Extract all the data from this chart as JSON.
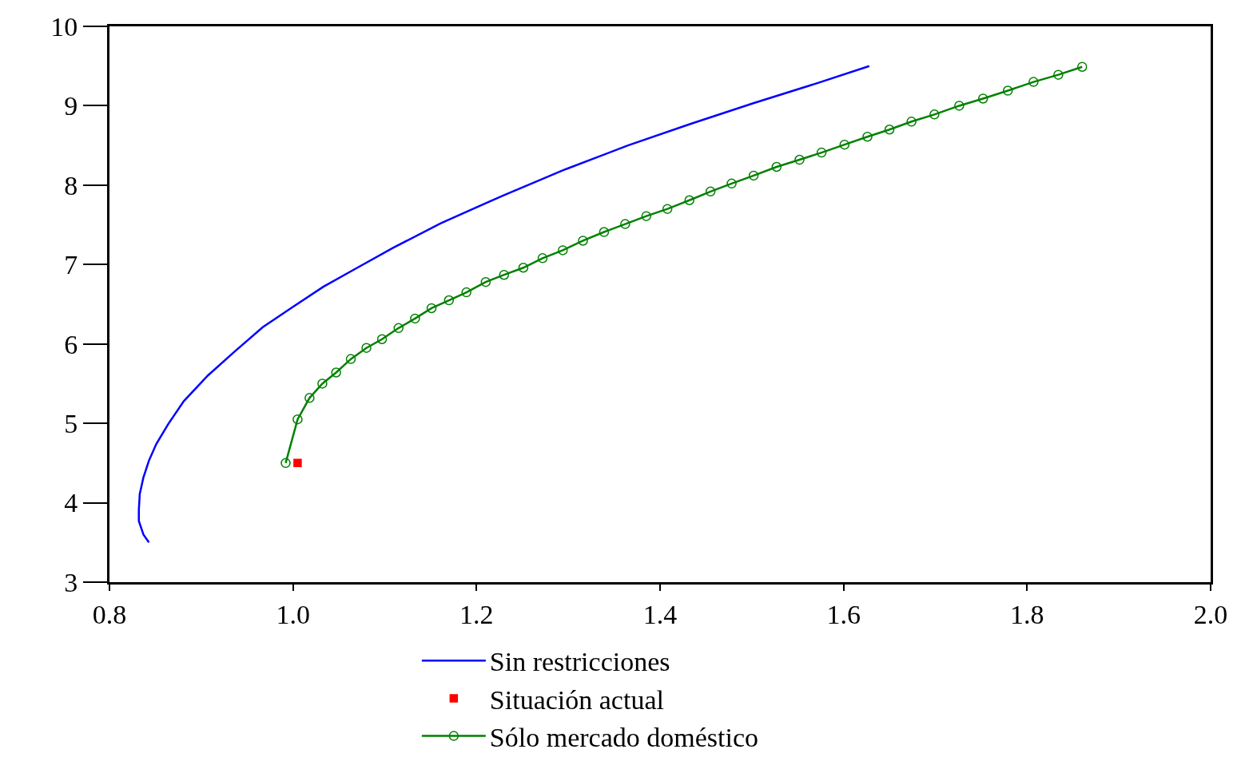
{
  "chart_data": {
    "type": "line",
    "xlim": [
      0.8,
      2.0
    ],
    "ylim": [
      3,
      10
    ],
    "xticks": [
      {
        "value": 0.8,
        "label": "0.8"
      },
      {
        "value": 1.0,
        "label": "1.0"
      },
      {
        "value": 1.2,
        "label": "1.2"
      },
      {
        "value": 1.4,
        "label": "1.4"
      },
      {
        "value": 1.6,
        "label": "1.6"
      },
      {
        "value": 1.8,
        "label": "1.8"
      },
      {
        "value": 2.0,
        "label": "2.0"
      }
    ],
    "yticks": [
      3,
      4,
      5,
      6,
      7,
      8,
      9,
      10
    ],
    "legend": "bottom",
    "series": [
      {
        "name": "Sin restricciones",
        "color": "#0000ff",
        "marker": "none",
        "x": [
          0.843,
          0.837,
          0.832,
          0.832,
          0.833,
          0.837,
          0.843,
          0.851,
          0.864,
          0.881,
          0.907,
          0.936,
          0.967,
          0.999,
          1.033,
          1.067,
          1.109,
          1.161,
          1.229,
          1.297,
          1.365,
          1.433,
          1.501,
          1.57,
          1.628
        ],
        "values": [
          3.5,
          3.6,
          3.77,
          3.91,
          4.11,
          4.32,
          4.53,
          4.74,
          4.99,
          5.28,
          5.6,
          5.9,
          6.21,
          6.46,
          6.72,
          6.94,
          7.21,
          7.52,
          7.87,
          8.2,
          8.5,
          8.77,
          9.03,
          9.28,
          9.5
        ]
      },
      {
        "name": "Situación actual",
        "color": "#ff0000",
        "type": "scatter",
        "marker": "square",
        "x": [
          1.005
        ],
        "values": [
          4.5
        ]
      },
      {
        "name": "Sólo mercado doméstico",
        "color": "#008000",
        "marker": "circle",
        "x": [
          0.992,
          1.005,
          1.018,
          1.032,
          1.047,
          1.063,
          1.08,
          1.097,
          1.115,
          1.133,
          1.151,
          1.17,
          1.189,
          1.21,
          1.23,
          1.251,
          1.272,
          1.294,
          1.316,
          1.339,
          1.362,
          1.385,
          1.408,
          1.432,
          1.455,
          1.478,
          1.502,
          1.527,
          1.552,
          1.576,
          1.601,
          1.626,
          1.65,
          1.674,
          1.699,
          1.726,
          1.752,
          1.779,
          1.807,
          1.834,
          1.86
        ],
        "values": [
          4.5,
          5.05,
          5.32,
          5.5,
          5.64,
          5.81,
          5.95,
          6.06,
          6.2,
          6.32,
          6.45,
          6.55,
          6.65,
          6.78,
          6.87,
          6.96,
          7.08,
          7.18,
          7.3,
          7.41,
          7.51,
          7.61,
          7.7,
          7.81,
          7.92,
          8.02,
          8.12,
          8.23,
          8.32,
          8.41,
          8.51,
          8.61,
          8.7,
          8.8,
          8.89,
          9.0,
          9.09,
          9.19,
          9.3,
          9.39,
          9.49
        ]
      }
    ]
  }
}
